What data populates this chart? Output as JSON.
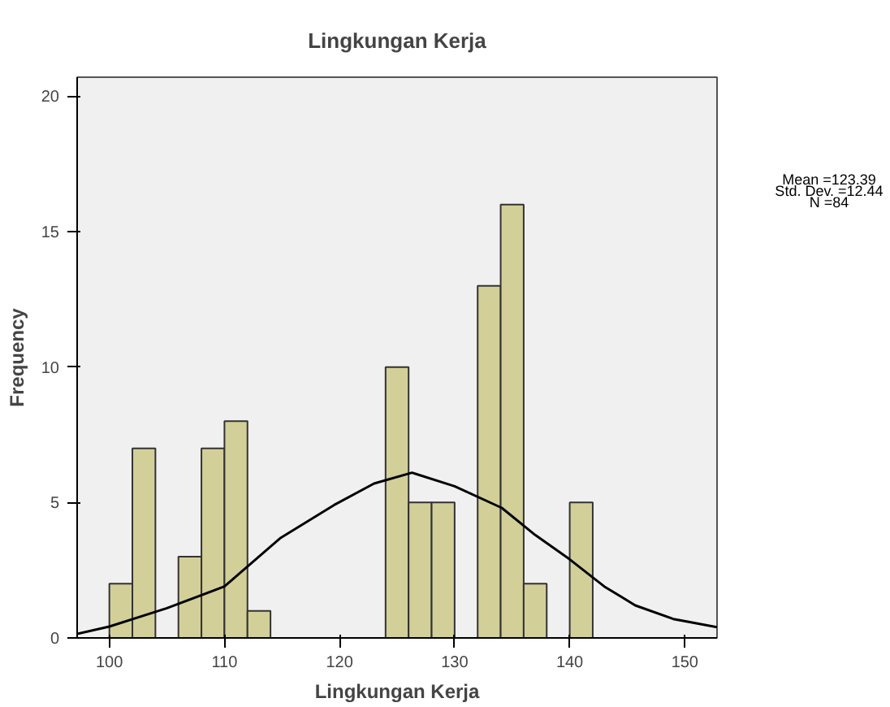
{
  "chart_data": {
    "type": "histogram",
    "title": "Lingkungan Kerja",
    "xlabel": "Lingkungan Kerja",
    "ylabel": "Frequency",
    "bins": [
      100,
      102,
      104,
      106,
      108,
      110,
      112,
      114,
      116,
      118,
      120,
      122,
      124,
      126,
      128,
      130,
      132,
      134,
      136,
      138,
      140,
      142
    ],
    "values": [
      2,
      7,
      0,
      3,
      7,
      8,
      1,
      0,
      0,
      0,
      0,
      0,
      10,
      5,
      5,
      0,
      13,
      16,
      2,
      0,
      5
    ],
    "color": "#d3cf99",
    "series": [
      {
        "type": "line",
        "color": "#000000",
        "x": [
          97.2,
          100,
          105,
          110,
          114.9,
          119.5,
          123,
          126.3,
          130,
          134.1,
          137,
          140,
          143,
          145.7,
          149,
          152.8
        ],
        "values": [
          0.15,
          0.42,
          1.1,
          1.9,
          3.7,
          4.9,
          5.7,
          6.1,
          5.6,
          4.8,
          3.8,
          2.9,
          1.9,
          1.2,
          0.7,
          0.4
        ]
      }
    ],
    "xlim": [
      97.2,
      152.8
    ],
    "xticks": [
      100,
      110,
      120,
      130,
      140,
      150
    ],
    "ylim": [
      0,
      20.7
    ],
    "yticks": [
      0,
      5,
      10,
      15,
      20
    ],
    "grid": false,
    "annotations": [
      "Mean =123.39",
      "Std. Dev. =12.44",
      "N =84"
    ]
  }
}
